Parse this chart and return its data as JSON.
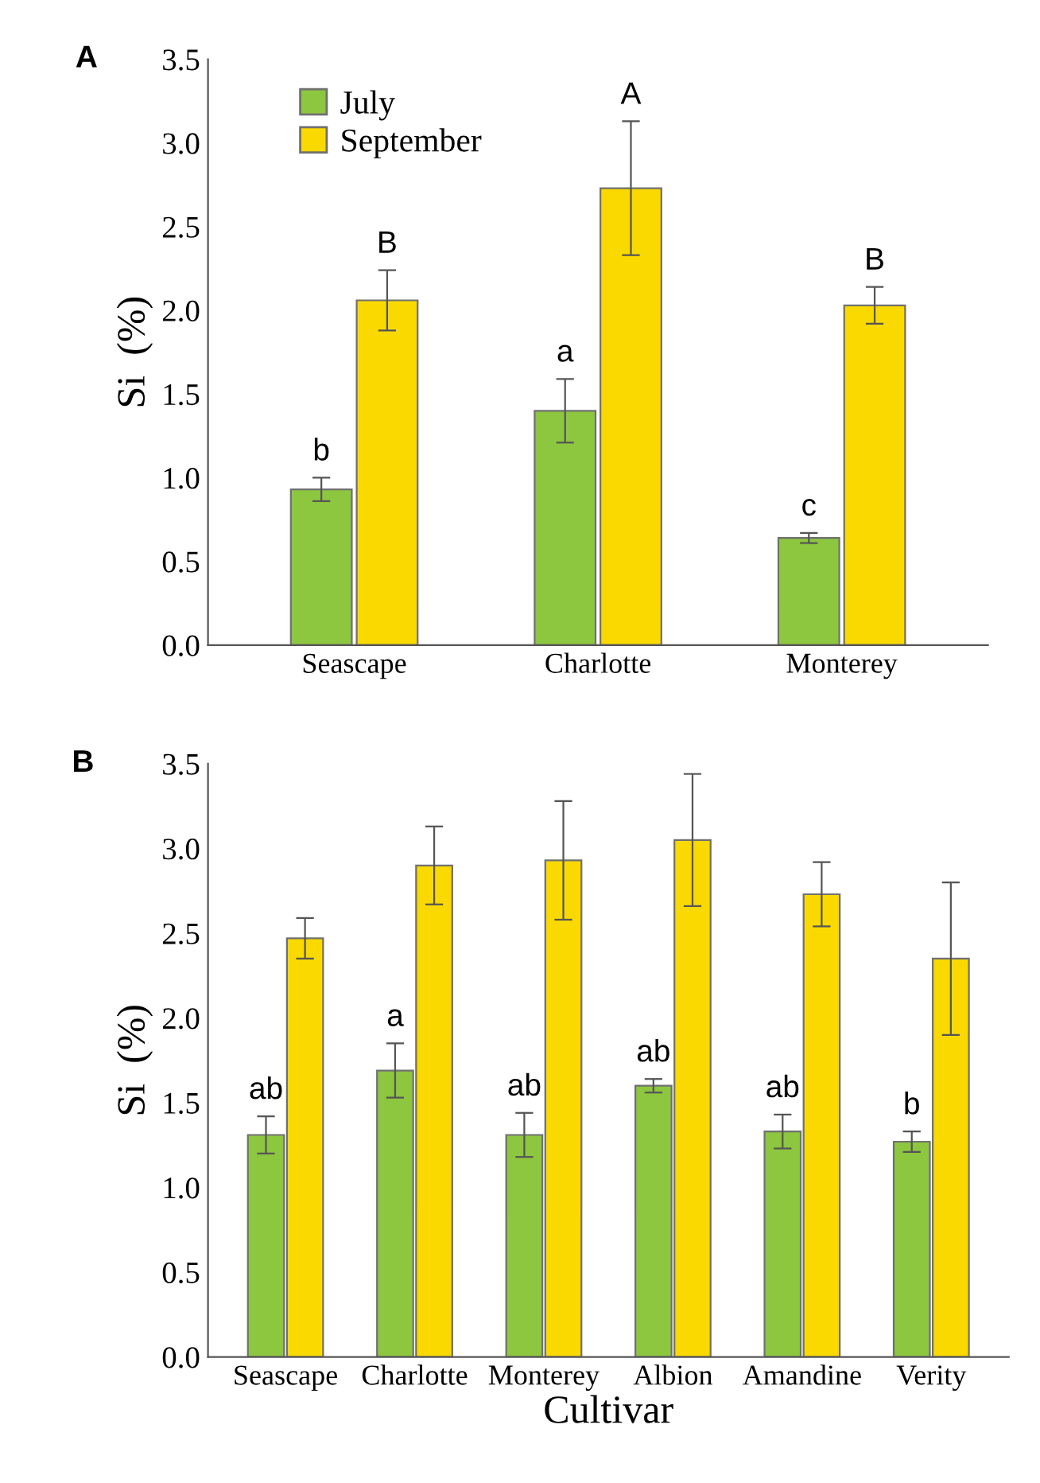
{
  "chart_data": [
    {
      "type": "bar",
      "title": "A",
      "ylabel": "Si  (%)",
      "categories": [
        "Seascape",
        "Charlotte",
        "Monterey"
      ],
      "series": [
        {
          "name": "July",
          "color": "#8dc63f",
          "values": [
            0.93,
            1.4,
            0.64
          ],
          "errors": [
            0.07,
            0.19,
            0.03
          ]
        },
        {
          "name": "September",
          "color": "#f9d900",
          "values": [
            2.06,
            2.73,
            2.03
          ],
          "errors": [
            0.18,
            0.4,
            0.11
          ]
        }
      ],
      "ylim": [
        0,
        3.5
      ],
      "yticks": [
        {
          "value": 0,
          "label": "0.0"
        },
        0.5,
        {
          "value": 1,
          "label": "1.0"
        },
        1.5,
        {
          "value": 2,
          "label": "2.0"
        },
        2.5,
        {
          "value": 3,
          "label": "3.0"
        },
        3.5
      ],
      "legend": "top left",
      "grid": false,
      "annotations": [
        {
          "text": "b",
          "x": "Seascape",
          "y": 0.93
        },
        {
          "text": "B",
          "x": "Seascape",
          "y": 2.06
        },
        {
          "text": "a",
          "x": "Charlotte",
          "y": 1.4
        },
        {
          "text": "A",
          "x": "Charlotte",
          "y": 2.73
        },
        {
          "text": "c",
          "x": "Monterey",
          "y": 0.64
        },
        {
          "text": "B",
          "x": "Monterey",
          "y": 2.03
        }
      ]
    },
    {
      "type": "bar",
      "title": "B",
      "ylabel": "Si  (%)",
      "xlabel": "Cultivar",
      "categories": [
        "Seascape",
        "Charlotte",
        "Monterey",
        "Albion",
        "Amandine",
        "Verity"
      ],
      "series": [
        {
          "color": "#8dc63f",
          "values": [
            1.31,
            1.69,
            1.31,
            1.6,
            1.33,
            1.27
          ],
          "errors": [
            0.11,
            0.16,
            0.13,
            0.04,
            0.1,
            0.06
          ]
        },
        {
          "color": "#f9d900",
          "values": [
            2.47,
            2.9,
            2.93,
            3.05,
            2.73,
            2.35
          ],
          "errors": [
            0.12,
            0.23,
            0.35,
            0.39,
            0.19,
            0.45
          ]
        }
      ],
      "ylim": [
        0,
        3.5
      ],
      "yticks": [
        {
          "value": 0,
          "label": "0.0"
        },
        0.5,
        {
          "value": 1,
          "label": "1.0"
        },
        1.5,
        {
          "value": 2,
          "label": "2.0"
        },
        2.5,
        {
          "value": 3,
          "label": "3.0"
        },
        3.5
      ],
      "grid": false,
      "annotations": [
        {
          "text": "ab",
          "x": "Seascape",
          "y": 1.31
        },
        {
          "text": "a",
          "x": "Charlotte",
          "y": 1.69
        },
        {
          "text": "ab",
          "x": "Monterey",
          "y": 1.31
        },
        {
          "text": "ab",
          "x": "Albion",
          "y": 1.6
        },
        {
          "text": "ab",
          "x": "Amandine",
          "y": 1.33
        },
        {
          "text": "b",
          "x": "Verity",
          "y": 1.27
        }
      ]
    }
  ]
}
